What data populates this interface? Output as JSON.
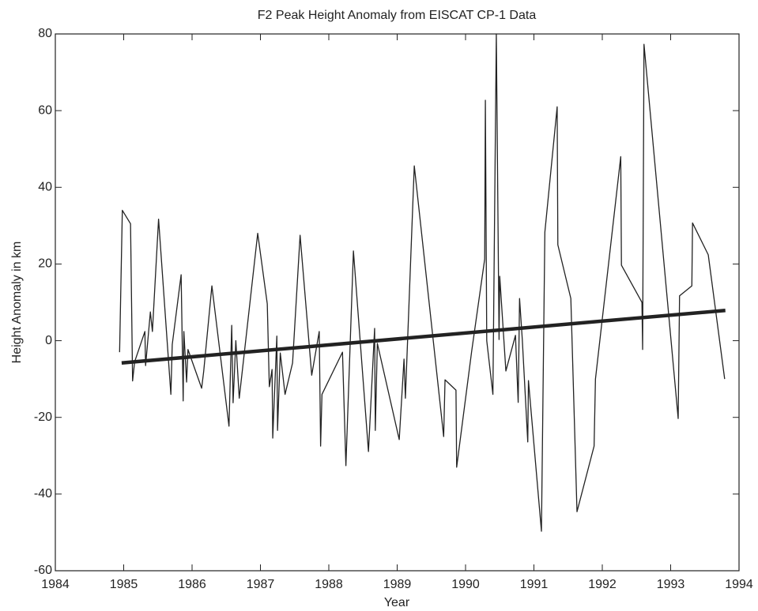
{
  "chart_data": {
    "type": "line",
    "title": "F2 Peak Height Anomaly from EISCAT CP-1 Data",
    "xlabel": "Year",
    "ylabel": "Height Anomaly in km",
    "xlim": [
      1984,
      1994
    ],
    "xticks": [
      1984,
      1985,
      1986,
      1987,
      1988,
      1989,
      1990,
      1991,
      1992,
      1993,
      1994
    ],
    "ylim": [
      -60,
      80
    ],
    "yticks": [
      -60,
      -40,
      -20,
      0,
      20,
      40,
      60,
      80
    ],
    "grid": false,
    "series": [
      {
        "color": "#222222",
        "line_width": 1.3,
        "x": [
          1984.94,
          1984.98,
          1985.1,
          1985.13,
          1985.16,
          1985.31,
          1985.32,
          1985.39,
          1985.42,
          1985.51,
          1985.69,
          1985.71,
          1985.84,
          1985.87,
          1985.88,
          1985.92,
          1985.94,
          1986.14,
          1986.17,
          1986.29,
          1986.54,
          1986.58,
          1986.6,
          1986.64,
          1986.69,
          1986.96,
          1987.1,
          1987.13,
          1987.17,
          1987.18,
          1987.24,
          1987.25,
          1987.29,
          1987.36,
          1987.47,
          1987.58,
          1987.75,
          1987.86,
          1987.88,
          1987.9,
          1988.2,
          1988.25,
          1988.36,
          1988.58,
          1988.67,
          1988.68,
          1988.71,
          1989.03,
          1989.1,
          1989.12,
          1989.25,
          1989.68,
          1989.7,
          1989.86,
          1989.87,
          1990.09,
          1990.28,
          1990.29,
          1990.31,
          1990.4,
          1990.45,
          1990.49,
          1990.5,
          1990.59,
          1990.73,
          1990.77,
          1990.79,
          1990.83,
          1990.91,
          1990.92,
          1991.11,
          1991.16,
          1991.34,
          1991.35,
          1991.54,
          1991.63,
          1991.88,
          1991.9,
          1992.27,
          1992.28,
          1992.58,
          1992.59,
          1992.61,
          1993.11,
          1993.13,
          1993.31,
          1993.32,
          1993.55,
          1993.79
        ],
        "values": [
          -3,
          34,
          30.5,
          -10.5,
          -5.5,
          2.4,
          -6.5,
          7.5,
          2.4,
          31.7,
          -14,
          -1,
          17.2,
          -15.7,
          2.4,
          -10.8,
          -2.3,
          -12.4,
          -8,
          14.3,
          -22.3,
          4,
          -16.2,
          0,
          -15,
          28,
          9.6,
          -12,
          -7.5,
          -25.4,
          1.2,
          -23.4,
          -3.2,
          -14,
          -5.8,
          27.5,
          -9,
          2.4,
          -27.5,
          -14,
          -3,
          -32.6,
          23.4,
          -28.9,
          3.2,
          -23.4,
          -0.7,
          -25.8,
          -4.8,
          -15,
          45.6,
          -25,
          -10.2,
          -12.9,
          -33,
          -2.7,
          21.3,
          62.7,
          0,
          -14,
          80,
          0.3,
          16.8,
          -7.9,
          1.4,
          -16.1,
          11,
          0.3,
          -26.4,
          -10.4,
          -49.7,
          28.3,
          61,
          25,
          11,
          -44.6,
          -27.5,
          -10,
          48,
          19.7,
          10,
          -2.3,
          77.3,
          -20.3,
          11.7,
          14.3,
          30.7,
          22.4,
          -10
        ]
      },
      {
        "color": "#222222",
        "line_width": 4.5,
        "x": [
          1984.97,
          1993.8
        ],
        "values": [
          -5.8,
          7.9
        ]
      }
    ]
  }
}
